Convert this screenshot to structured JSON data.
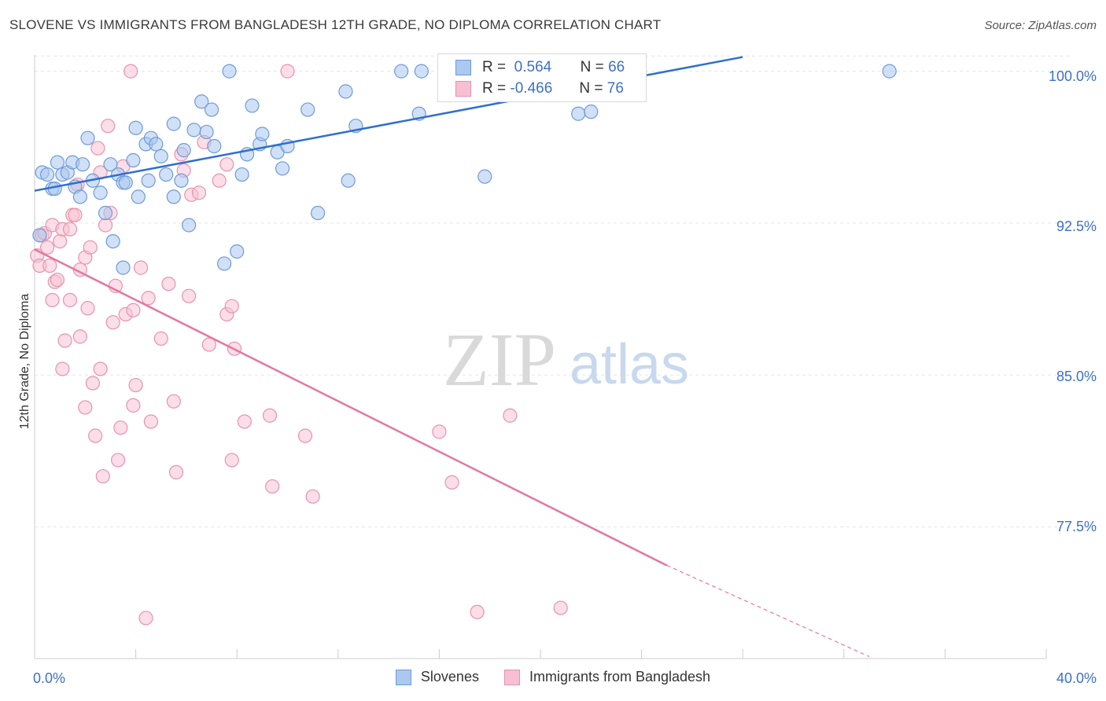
{
  "title": "SLOVENE VS IMMIGRANTS FROM BANGLADESH 12TH GRADE, NO DIPLOMA CORRELATION CHART",
  "source": "Source: ZipAtlas.com",
  "watermark": {
    "zip": "ZIP",
    "atlas": "atlas"
  },
  "legend": {
    "r_label": "R =",
    "n_label": "N =",
    "series": [
      {
        "r": "0.564",
        "n": "66",
        "fill": "#aac8f0",
        "stroke": "#6f9bd8"
      },
      {
        "r": "-0.466",
        "n": "76",
        "fill": "#f7c0d2",
        "stroke": "#e890aa"
      }
    ]
  },
  "colors": {
    "blue_point": "#a9c6ee",
    "blue_stroke": "#6f9bd8",
    "blue_line": "#2f6fd0",
    "pink_point": "#f7c3d4",
    "pink_stroke": "#e893ad",
    "pink_line": "#e5779e",
    "axis_text": "#3d6fcc",
    "grid": "#e5e5e5"
  },
  "chart_data": {
    "type": "scatter",
    "title": "SLOVENE VS IMMIGRANTS FROM BANGLADESH 12TH GRADE, NO DIPLOMA CORRELATION CHART",
    "xlabel": "",
    "ylabel": "12th Grade, No Diploma",
    "xlim": [
      0,
      40
    ],
    "ylim": [
      71.0,
      100.8
    ],
    "x_tick_labels": [
      "0.0%",
      "40.0%"
    ],
    "y_ticks": [
      100.0,
      92.5,
      85.0,
      77.5
    ],
    "y_tick_labels": [
      "100.0%",
      "92.5%",
      "85.0%",
      "77.5%"
    ],
    "grid": true,
    "legend_position": "bottom",
    "series": [
      {
        "name": "Slovenes",
        "r": 0.564,
        "n": 66,
        "trend": {
          "x": [
            0.0,
            28.0
          ],
          "y": [
            94.1,
            100.7
          ]
        },
        "points": [
          [
            0.3,
            95.0
          ],
          [
            0.5,
            94.9
          ],
          [
            0.7,
            94.2
          ],
          [
            0.8,
            94.2
          ],
          [
            0.9,
            95.5
          ],
          [
            1.1,
            94.9
          ],
          [
            1.3,
            95.0
          ],
          [
            1.5,
            95.5
          ],
          [
            1.6,
            94.3
          ],
          [
            1.8,
            93.8
          ],
          [
            1.9,
            95.4
          ],
          [
            2.1,
            96.7
          ],
          [
            2.3,
            94.6
          ],
          [
            2.6,
            94.0
          ],
          [
            2.8,
            93.0
          ],
          [
            3.0,
            95.4
          ],
          [
            3.1,
            91.6
          ],
          [
            3.3,
            94.9
          ],
          [
            3.5,
            90.3
          ],
          [
            3.5,
            94.5
          ],
          [
            3.6,
            94.5
          ],
          [
            3.9,
            95.6
          ],
          [
            4.0,
            97.2
          ],
          [
            4.1,
            93.8
          ],
          [
            4.4,
            96.4
          ],
          [
            4.5,
            94.6
          ],
          [
            4.6,
            96.7
          ],
          [
            4.8,
            96.4
          ],
          [
            5.0,
            95.8
          ],
          [
            5.2,
            94.9
          ],
          [
            5.5,
            97.4
          ],
          [
            5.5,
            93.8
          ],
          [
            5.8,
            94.6
          ],
          [
            5.9,
            96.1
          ],
          [
            6.1,
            92.4
          ],
          [
            6.3,
            97.1
          ],
          [
            6.6,
            98.5
          ],
          [
            6.8,
            97.0
          ],
          [
            7.0,
            98.1
          ],
          [
            7.1,
            96.3
          ],
          [
            7.5,
            90.5
          ],
          [
            7.7,
            100.0
          ],
          [
            8.0,
            91.1
          ],
          [
            8.2,
            94.9
          ],
          [
            8.4,
            95.9
          ],
          [
            8.6,
            98.3
          ],
          [
            8.9,
            96.4
          ],
          [
            9.0,
            96.9
          ],
          [
            9.6,
            96.0
          ],
          [
            9.8,
            95.2
          ],
          [
            10.0,
            96.3
          ],
          [
            10.8,
            98.1
          ],
          [
            11.2,
            93.0
          ],
          [
            12.3,
            99.0
          ],
          [
            12.4,
            94.6
          ],
          [
            12.7,
            97.3
          ],
          [
            14.5,
            100.0
          ],
          [
            15.2,
            97.9
          ],
          [
            15.3,
            100.0
          ],
          [
            17.8,
            94.8
          ],
          [
            21.5,
            97.9
          ],
          [
            22.0,
            98.0
          ],
          [
            22.7,
            100.0
          ],
          [
            23.3,
            99.5
          ],
          [
            33.8,
            100.0
          ],
          [
            0.2,
            91.9
          ]
        ]
      },
      {
        "name": "Immigrants from Bangladesh",
        "r": -0.466,
        "n": 76,
        "trend": {
          "x": [
            0.0,
            25.0
          ],
          "y": [
            91.2,
            75.6
          ]
        },
        "trend_dashed": {
          "x": [
            25.0,
            33.0
          ],
          "y": [
            75.6,
            71.1
          ]
        },
        "points": [
          [
            0.1,
            90.9
          ],
          [
            0.2,
            90.4
          ],
          [
            0.3,
            91.9
          ],
          [
            0.4,
            92.0
          ],
          [
            0.6,
            90.4
          ],
          [
            0.7,
            92.4
          ],
          [
            0.7,
            88.7
          ],
          [
            0.8,
            89.6
          ],
          [
            0.9,
            89.7
          ],
          [
            1.0,
            91.6
          ],
          [
            1.1,
            85.3
          ],
          [
            1.1,
            92.2
          ],
          [
            1.2,
            86.7
          ],
          [
            1.4,
            88.7
          ],
          [
            1.4,
            92.2
          ],
          [
            1.5,
            92.9
          ],
          [
            1.6,
            92.9
          ],
          [
            1.7,
            94.4
          ],
          [
            1.8,
            86.9
          ],
          [
            1.8,
            90.2
          ],
          [
            2.0,
            90.8
          ],
          [
            2.0,
            83.4
          ],
          [
            2.1,
            88.3
          ],
          [
            2.2,
            91.3
          ],
          [
            2.3,
            84.6
          ],
          [
            2.4,
            82.0
          ],
          [
            2.5,
            96.2
          ],
          [
            2.6,
            85.3
          ],
          [
            2.6,
            95.0
          ],
          [
            2.7,
            80.0
          ],
          [
            2.8,
            92.4
          ],
          [
            2.9,
            97.3
          ],
          [
            3.0,
            93.0
          ],
          [
            3.1,
            87.6
          ],
          [
            3.2,
            89.4
          ],
          [
            3.3,
            80.8
          ],
          [
            3.4,
            82.4
          ],
          [
            3.5,
            95.3
          ],
          [
            3.6,
            88.0
          ],
          [
            3.8,
            100.0
          ],
          [
            3.9,
            83.5
          ],
          [
            3.9,
            88.2
          ],
          [
            4.0,
            84.5
          ],
          [
            4.2,
            90.3
          ],
          [
            4.4,
            73.0
          ],
          [
            4.5,
            88.8
          ],
          [
            4.6,
            82.7
          ],
          [
            5.0,
            86.8
          ],
          [
            5.3,
            89.5
          ],
          [
            5.5,
            83.7
          ],
          [
            5.6,
            80.2
          ],
          [
            5.8,
            95.9
          ],
          [
            5.9,
            95.1
          ],
          [
            6.1,
            88.9
          ],
          [
            6.2,
            93.9
          ],
          [
            6.5,
            94.0
          ],
          [
            6.7,
            96.5
          ],
          [
            6.9,
            86.5
          ],
          [
            7.3,
            94.6
          ],
          [
            7.6,
            88.0
          ],
          [
            7.6,
            95.4
          ],
          [
            7.8,
            80.8
          ],
          [
            7.8,
            88.4
          ],
          [
            7.9,
            86.3
          ],
          [
            8.3,
            82.7
          ],
          [
            9.3,
            83.0
          ],
          [
            9.4,
            79.5
          ],
          [
            10.0,
            100.0
          ],
          [
            10.7,
            82.0
          ],
          [
            11.0,
            79.0
          ],
          [
            16.0,
            82.2
          ],
          [
            16.5,
            79.7
          ],
          [
            17.5,
            73.3
          ],
          [
            18.8,
            83.0
          ],
          [
            20.8,
            73.5
          ],
          [
            0.5,
            91.3
          ]
        ]
      }
    ]
  }
}
